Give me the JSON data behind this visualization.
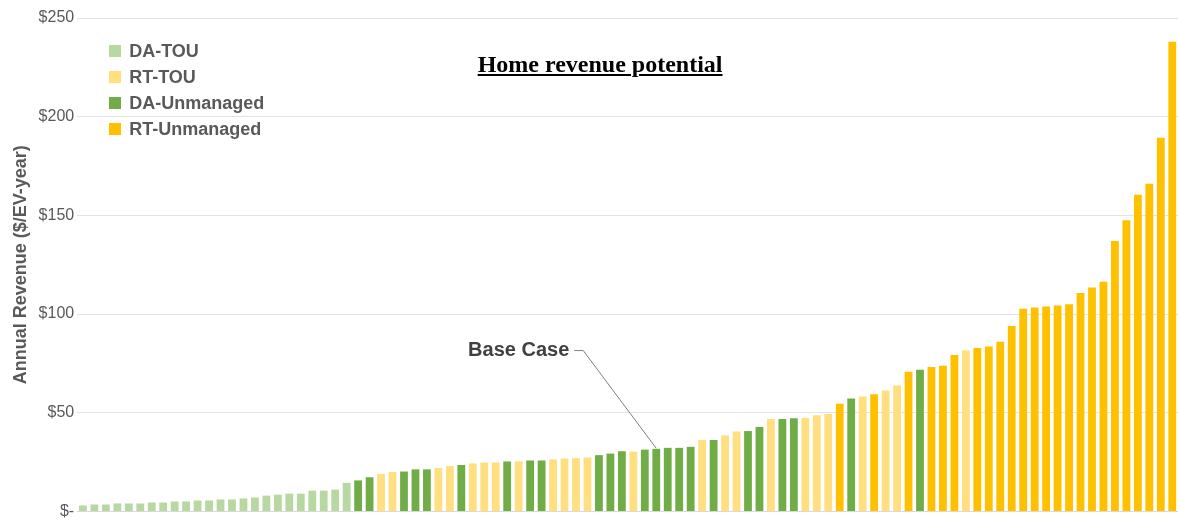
{
  "chart_data": {
    "type": "bar",
    "title": "Home revenue potential",
    "ylabel": "Annual Revenue ($/EV-year)",
    "categories": [
      null,
      null,
      null,
      null,
      null,
      null,
      null,
      null,
      null,
      null,
      null,
      null,
      null,
      null,
      null,
      null,
      null,
      null,
      null,
      null,
      null,
      null,
      null,
      null,
      null,
      null,
      null,
      null,
      null,
      null,
      null,
      null,
      null,
      null,
      null,
      null,
      null,
      null,
      null,
      null,
      null,
      null,
      null,
      null,
      null,
      null,
      null,
      null,
      null,
      null,
      null,
      null,
      null,
      null,
      null,
      null,
      null,
      null,
      null,
      null,
      null,
      null,
      null,
      null,
      null,
      null,
      null,
      null,
      null,
      null,
      null,
      null,
      null,
      null,
      null,
      null,
      null,
      null,
      null,
      null,
      null,
      null,
      null,
      null,
      null,
      null,
      null,
      null,
      null,
      null,
      null,
      null,
      null,
      null,
      null,
      null
    ],
    "series": [
      {
        "name": "DA-TOU",
        "color": "#b7d8a0",
        "values": [
          3,
          3.5,
          3.5,
          4,
          4,
          4,
          4.5,
          4.5,
          5,
          5,
          5.5,
          5.5,
          6,
          6,
          6.5,
          7,
          8,
          8.5,
          9,
          9,
          10.5,
          10.5,
          11,
          14.5,
          null,
          null,
          null,
          null,
          null,
          null,
          null,
          null,
          null,
          null,
          null,
          null,
          null,
          null,
          null,
          null,
          null,
          null,
          null,
          null,
          null,
          null,
          null,
          null,
          null,
          null,
          null,
          null,
          null,
          null,
          null,
          null,
          null,
          null,
          null,
          null,
          null,
          null,
          null,
          null,
          null,
          null,
          null,
          null,
          null,
          null,
          null,
          null,
          null,
          null,
          null,
          null,
          null,
          null,
          null,
          null,
          null,
          null,
          null,
          null,
          null,
          null,
          null,
          null,
          null,
          null,
          null,
          null,
          null,
          null,
          null,
          null
        ]
      },
      {
        "name": "RT-TOU",
        "color": "#ffdf80",
        "values": [
          null,
          null,
          null,
          null,
          null,
          null,
          null,
          null,
          null,
          null,
          null,
          null,
          null,
          null,
          null,
          null,
          null,
          null,
          null,
          null,
          null,
          null,
          null,
          null,
          null,
          null,
          19,
          20,
          null,
          null,
          null,
          22,
          23,
          null,
          24.3,
          24.8,
          24.8,
          null,
          25.3,
          null,
          null,
          26.3,
          26.8,
          27,
          27.3,
          null,
          null,
          null,
          30.3,
          null,
          null,
          null,
          null,
          null,
          36.2,
          null,
          38.5,
          40.5,
          null,
          null,
          46.8,
          null,
          null,
          47.3,
          48.7,
          49.3,
          null,
          null,
          58.2,
          null,
          61.2,
          63.8,
          null,
          null,
          null,
          null,
          null,
          81.5,
          null,
          null,
          null,
          null,
          null,
          null,
          null,
          null,
          null,
          null,
          null,
          null,
          null,
          null,
          null,
          null,
          null,
          null
        ]
      },
      {
        "name": "DA-Unmanaged",
        "color": "#70ad47",
        "values": [
          null,
          null,
          null,
          null,
          null,
          null,
          null,
          null,
          null,
          null,
          null,
          null,
          null,
          null,
          null,
          null,
          null,
          null,
          null,
          null,
          null,
          null,
          null,
          null,
          15.7,
          17.3,
          null,
          null,
          20.2,
          21.3,
          21.3,
          null,
          null,
          23.5,
          null,
          null,
          null,
          25.3,
          null,
          25.8,
          25.8,
          null,
          null,
          null,
          null,
          28.5,
          29.3,
          30.5,
          null,
          31.3,
          31.7,
          32.2,
          32.2,
          32.7,
          null,
          36.2,
          null,
          null,
          40.7,
          42.8,
          null,
          46.8,
          47.2,
          null,
          null,
          null,
          null,
          57.2,
          null,
          null,
          null,
          null,
          null,
          71.8,
          null,
          null,
          null,
          null,
          null,
          null,
          null,
          null,
          null,
          null,
          null,
          null,
          null,
          null,
          null,
          null,
          null,
          null,
          null,
          null,
          null,
          null
        ]
      },
      {
        "name": "RT-Unmanaged",
        "color": "#ffc000",
        "values": [
          null,
          null,
          null,
          null,
          null,
          null,
          null,
          null,
          null,
          null,
          null,
          null,
          null,
          null,
          null,
          null,
          null,
          null,
          null,
          null,
          null,
          null,
          null,
          null,
          null,
          null,
          null,
          null,
          null,
          null,
          null,
          null,
          null,
          null,
          null,
          null,
          null,
          null,
          null,
          null,
          null,
          null,
          null,
          null,
          null,
          null,
          null,
          null,
          null,
          null,
          null,
          null,
          null,
          null,
          null,
          null,
          null,
          null,
          null,
          null,
          null,
          null,
          null,
          null,
          null,
          null,
          54.5,
          null,
          null,
          59.3,
          null,
          null,
          70.7,
          null,
          73.2,
          73.8,
          79.2,
          null,
          82.8,
          83.5,
          86,
          94,
          102.7,
          103.3,
          103.8,
          104.3,
          105,
          110.7,
          113.5,
          116.3,
          137,
          147.5,
          160.5,
          166,
          189.3,
          238
        ]
      }
    ],
    "ylim": [
      0,
      250
    ],
    "yticks": [
      {
        "value": 0,
        "label": "$-"
      },
      {
        "value": 50,
        "label": "$50"
      },
      {
        "value": 100,
        "label": "$100"
      },
      {
        "value": 150,
        "label": "$150"
      },
      {
        "value": 200,
        "label": "$200"
      },
      {
        "value": 250,
        "label": "$250"
      }
    ],
    "annotations": [
      "Base Case"
    ],
    "grid": "y",
    "legend": "top left",
    "tick_labels": "y"
  }
}
